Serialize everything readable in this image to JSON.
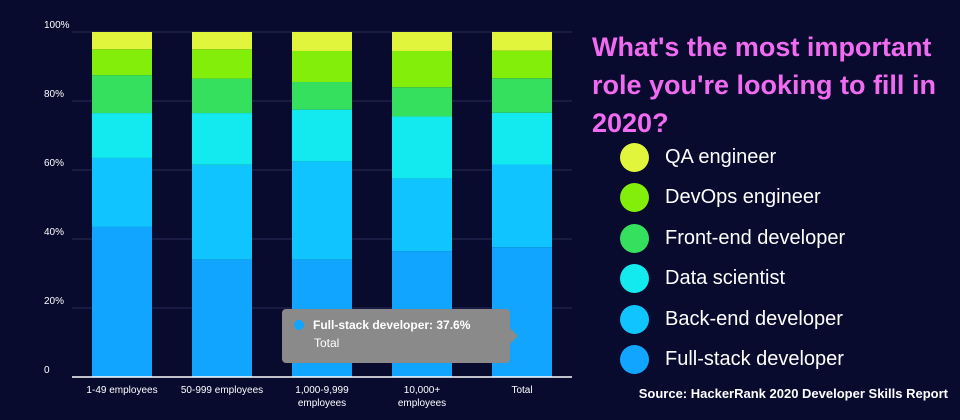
{
  "chart_data": {
    "type": "bar",
    "stacked": true,
    "title": "What's the most important role you're looking to fill in 2020?",
    "categories": [
      [
        "1-49 employees"
      ],
      [
        "50-999 employees"
      ],
      [
        "1,000-9,999",
        "employees"
      ],
      [
        "10,000+",
        "employees"
      ],
      [
        "Total"
      ]
    ],
    "y_tick_labels": [
      "0",
      "20%",
      "40%",
      "60%",
      "80%",
      "100%"
    ],
    "ylim": [
      0,
      100
    ],
    "series": [
      {
        "name": "Full-stack developer",
        "color": "#11a5ff",
        "values": [
          43.5,
          34.0,
          34.0,
          36.5,
          37.6
        ]
      },
      {
        "name": "Back-end developer",
        "color": "#10c5ff",
        "values": [
          20.0,
          27.5,
          28.5,
          21.0,
          24.0
        ]
      },
      {
        "name": "Data scientist",
        "color": "#13eaf0",
        "values": [
          13.0,
          15.0,
          15.0,
          18.0,
          15.0
        ]
      },
      {
        "name": "Front-end developer",
        "color": "#35e05e",
        "values": [
          11.0,
          10.0,
          8.0,
          8.5,
          10.0
        ]
      },
      {
        "name": "DevOps engineer",
        "color": "#82ee09",
        "values": [
          7.5,
          8.5,
          9.0,
          10.5,
          8.0
        ]
      },
      {
        "name": "QA engineer",
        "color": "#e0f53c",
        "values": [
          5.0,
          5.0,
          5.5,
          5.5,
          5.4
        ]
      }
    ],
    "legend_order": [
      "QA engineer",
      "DevOps engineer",
      "Front-end developer",
      "Data scientist",
      "Back-end developer",
      "Full-stack developer"
    ],
    "tooltip": {
      "series": "Full-stack developer",
      "category": "Total",
      "line1": "Full-stack developer: 37.6%",
      "line2": "Total"
    },
    "source": "Source: HackerRank 2020 Developer Skills Report"
  }
}
